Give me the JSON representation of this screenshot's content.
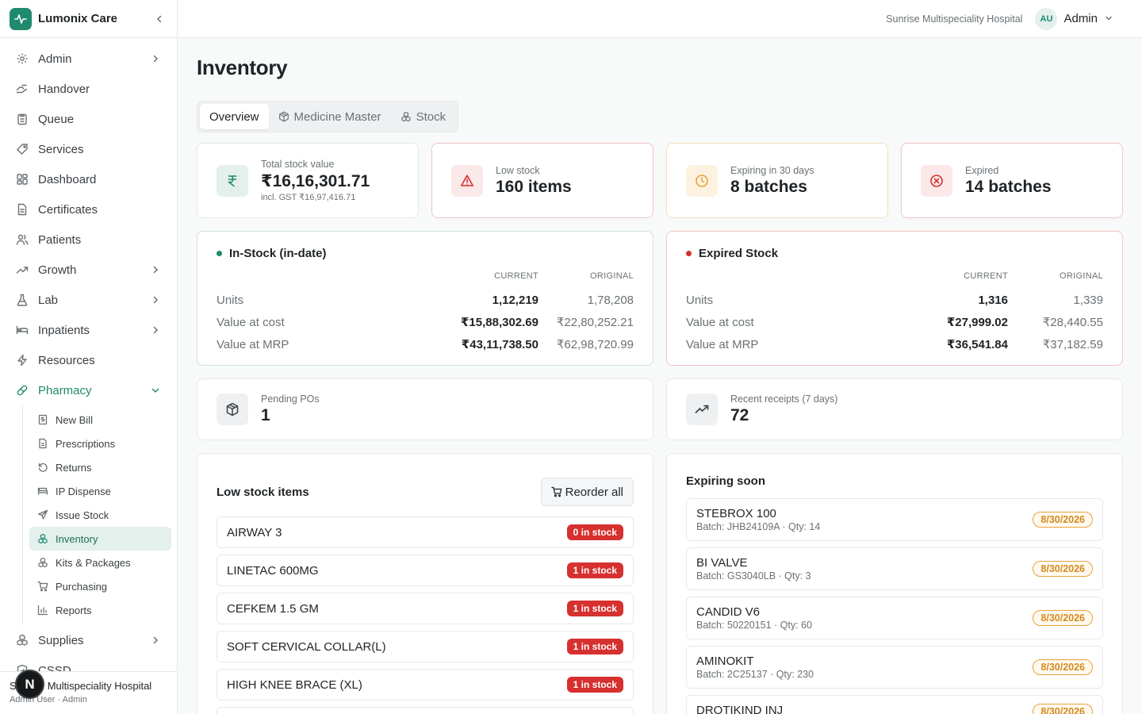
{
  "brand": {
    "name": "Lumonix Care"
  },
  "header": {
    "hospital": "Sunrise Multispeciality Hospital",
    "avatar_initials": "AU",
    "user": "Admin"
  },
  "sidebar": {
    "items": [
      {
        "label": "Admin",
        "icon": "gear-icon"
      },
      {
        "label": "Handover",
        "icon": "handover-icon"
      },
      {
        "label": "Queue",
        "icon": "clipboard-icon"
      },
      {
        "label": "Services",
        "icon": "tag-icon"
      },
      {
        "label": "Dashboard",
        "icon": "dashboard-icon"
      },
      {
        "label": "Certificates",
        "icon": "document-icon"
      },
      {
        "label": "Patients",
        "icon": "users-icon"
      },
      {
        "label": "Growth",
        "icon": "trending-up-icon"
      },
      {
        "label": "Lab",
        "icon": "flask-icon"
      },
      {
        "label": "Inpatients",
        "icon": "bed-icon"
      },
      {
        "label": "Resources",
        "icon": "bolt-icon"
      },
      {
        "label": "Pharmacy",
        "icon": "pill-icon"
      }
    ],
    "pharmacy_sub": [
      {
        "label": "New Bill",
        "icon": "bill-icon"
      },
      {
        "label": "Prescriptions",
        "icon": "document-icon"
      },
      {
        "label": "Returns",
        "icon": "undo-icon"
      },
      {
        "label": "IP Dispense",
        "icon": "bed-icon"
      },
      {
        "label": "Issue Stock",
        "icon": "send-icon"
      },
      {
        "label": "Inventory",
        "icon": "boxes-icon"
      },
      {
        "label": "Kits & Packages",
        "icon": "boxes-icon"
      },
      {
        "label": "Purchasing",
        "icon": "cart-icon"
      },
      {
        "label": "Reports",
        "icon": "bar-chart-icon"
      }
    ],
    "after": [
      {
        "label": "Supplies",
        "icon": "boxes-icon"
      },
      {
        "label": "CSSD",
        "icon": "shield-icon"
      }
    ],
    "footer": {
      "org": "Sunrise Multispeciality Hospital",
      "user": "Admin User · Admin"
    },
    "fab": "N"
  },
  "page": {
    "title": "Inventory",
    "tabs": [
      {
        "label": "Overview"
      },
      {
        "label": "Medicine Master"
      },
      {
        "label": "Stock"
      }
    ]
  },
  "stats": [
    {
      "label": "Total stock value",
      "value": "₹16,16,301.71",
      "sub": "incl. GST ₹16,97,416.71",
      "icon": "rupee-icon",
      "color": "#1f8a6e"
    },
    {
      "label": "Low stock",
      "value": "160 items",
      "icon": "warning-icon",
      "color": "#d6302f"
    },
    {
      "label": "Expiring in 30 days",
      "value": "8 batches",
      "icon": "clock-icon",
      "color": "#e8a23a"
    },
    {
      "label": "Expired",
      "value": "14 batches",
      "icon": "x-circle-icon",
      "color": "#d6302f"
    }
  ],
  "in_stock": {
    "title": "In-Stock (in-date)",
    "col_current": "CURRENT",
    "col_original": "ORIGINAL",
    "rows": [
      {
        "label": "Units",
        "current": "1,12,219",
        "original": "1,78,208"
      },
      {
        "label": "Value at cost",
        "current": "₹15,88,302.69",
        "original": "₹22,80,252.21"
      },
      {
        "label": "Value at MRP",
        "current": "₹43,11,738.50",
        "original": "₹62,98,720.99"
      }
    ]
  },
  "expired_stock": {
    "title": "Expired Stock",
    "col_current": "CURRENT",
    "col_original": "ORIGINAL",
    "rows": [
      {
        "label": "Units",
        "current": "1,316",
        "original": "1,339"
      },
      {
        "label": "Value at cost",
        "current": "₹27,999.02",
        "original": "₹28,440.55"
      },
      {
        "label": "Value at MRP",
        "current": "₹36,541.84",
        "original": "₹37,182.59"
      }
    ]
  },
  "pending_pos": {
    "label": "Pending POs",
    "value": "1"
  },
  "recent_receipts": {
    "label": "Recent receipts (7 days)",
    "value": "72"
  },
  "low_stock": {
    "title": "Low stock items",
    "button": "Reorder all",
    "items": [
      {
        "name": "AIRWAY 3",
        "badge": "0 in stock"
      },
      {
        "name": "LINETAC 600MG",
        "badge": "1 in stock"
      },
      {
        "name": "CEFKEM 1.5 GM",
        "badge": "1 in stock"
      },
      {
        "name": "SOFT CERVICAL COLLAR(L)",
        "badge": "1 in stock"
      },
      {
        "name": "HIGH KNEE BRACE (XL)",
        "badge": "1 in stock"
      },
      {
        "name": "",
        "badge": ""
      }
    ]
  },
  "expiring": {
    "title": "Expiring soon",
    "items": [
      {
        "name": "STEBROX 100",
        "meta": "Batch: JHB24109A · Qty: 14",
        "date": "8/30/2026"
      },
      {
        "name": "BI VALVE",
        "meta": "Batch: GS3040LB · Qty: 3",
        "date": "8/30/2026"
      },
      {
        "name": "CANDID V6",
        "meta": "Batch: 50220151 · Qty: 60",
        "date": "8/30/2026"
      },
      {
        "name": "AMINOKIT",
        "meta": "Batch: 2C25137 · Qty: 230",
        "date": "8/30/2026"
      },
      {
        "name": "DROTIKIND INJ",
        "meta": "",
        "date": "8/30/2026"
      }
    ]
  }
}
